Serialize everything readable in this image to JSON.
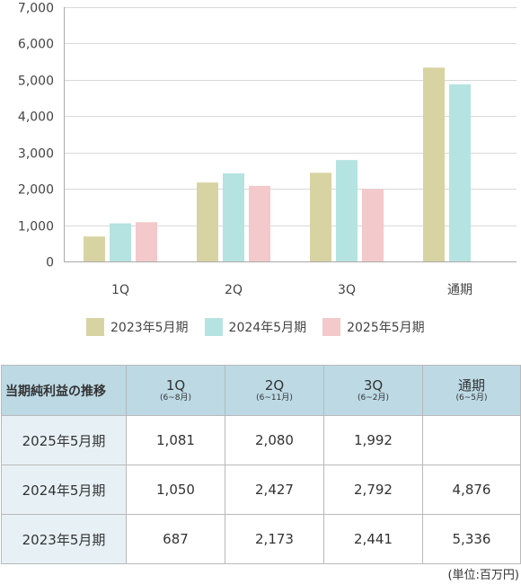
{
  "chart_data": {
    "type": "bar",
    "categories": [
      "1Q",
      "2Q",
      "3Q",
      "通期"
    ],
    "series": [
      {
        "name": "2023年5月期",
        "values": [
          687,
          2173,
          2441,
          5336
        ],
        "color": "#d8d3a2"
      },
      {
        "name": "2024年5月期",
        "values": [
          1050,
          2427,
          2792,
          4876
        ],
        "color": "#b5e3e1"
      },
      {
        "name": "2025年5月期",
        "values": [
          1081,
          2080,
          1992,
          null
        ],
        "color": "#f3c9cb"
      }
    ],
    "ylim": [
      0,
      7000
    ],
    "yticks": [
      0,
      1000,
      2000,
      3000,
      4000,
      5000,
      6000,
      7000
    ],
    "ytick_labels": [
      "0",
      "1,000",
      "2,000",
      "3,000",
      "4,000",
      "5,000",
      "6,000",
      "7,000"
    ],
    "grid": true,
    "legend_position": "bottom",
    "title": "",
    "xlabel": "",
    "ylabel": ""
  },
  "table": {
    "corner": "当期純利益の推移",
    "columns": [
      {
        "label": "1Q",
        "sub": "(6~8月)"
      },
      {
        "label": "2Q",
        "sub": "(6~11月)"
      },
      {
        "label": "3Q",
        "sub": "(6~2月)"
      },
      {
        "label": "通期",
        "sub": "(6~5月)"
      }
    ],
    "rows": [
      {
        "label": "2025年5月期",
        "cells": [
          "1,081",
          "2,080",
          "1,992",
          ""
        ]
      },
      {
        "label": "2024年5月期",
        "cells": [
          "1,050",
          "2,427",
          "2,792",
          "4,876"
        ]
      },
      {
        "label": "2023年5月期",
        "cells": [
          "687",
          "2,173",
          "2,441",
          "5,336"
        ]
      }
    ]
  },
  "unit_note": "(単位:百万円)",
  "colors": {
    "header_bg": "#bcd9e4",
    "row_label_bg": "#e7f1f5",
    "grid": "#d9d9d9"
  }
}
